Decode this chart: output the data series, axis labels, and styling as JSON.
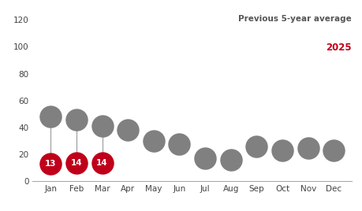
{
  "months": [
    "Jan",
    "Feb",
    "Mar",
    "Apr",
    "May",
    "Jun",
    "Jul",
    "Aug",
    "Sep",
    "Oct",
    "Nov",
    "Dec"
  ],
  "avg_values": [
    48,
    46,
    41,
    38,
    30,
    28,
    17,
    16,
    26,
    23,
    25,
    23
  ],
  "current_values": [
    13,
    14,
    14,
    null,
    null,
    null,
    null,
    null,
    null,
    null,
    null,
    null
  ],
  "avg_color": "#808080",
  "current_color": "#c0001a",
  "line_color": "#999999",
  "bg_color": "#ffffff",
  "title_line1": "Previous 5-year average",
  "title_line2": "2025",
  "title_color": "#555555",
  "title_year_color": "#c0001a",
  "ylim": [
    0,
    130
  ],
  "yticks": [
    0,
    20,
    40,
    60,
    80,
    100,
    120
  ],
  "avg_marker_size": 420,
  "current_marker_size": 420,
  "font_size_labels": 7.5,
  "font_size_values": 7.5,
  "font_size_title": 7.5,
  "font_size_year": 8.5
}
